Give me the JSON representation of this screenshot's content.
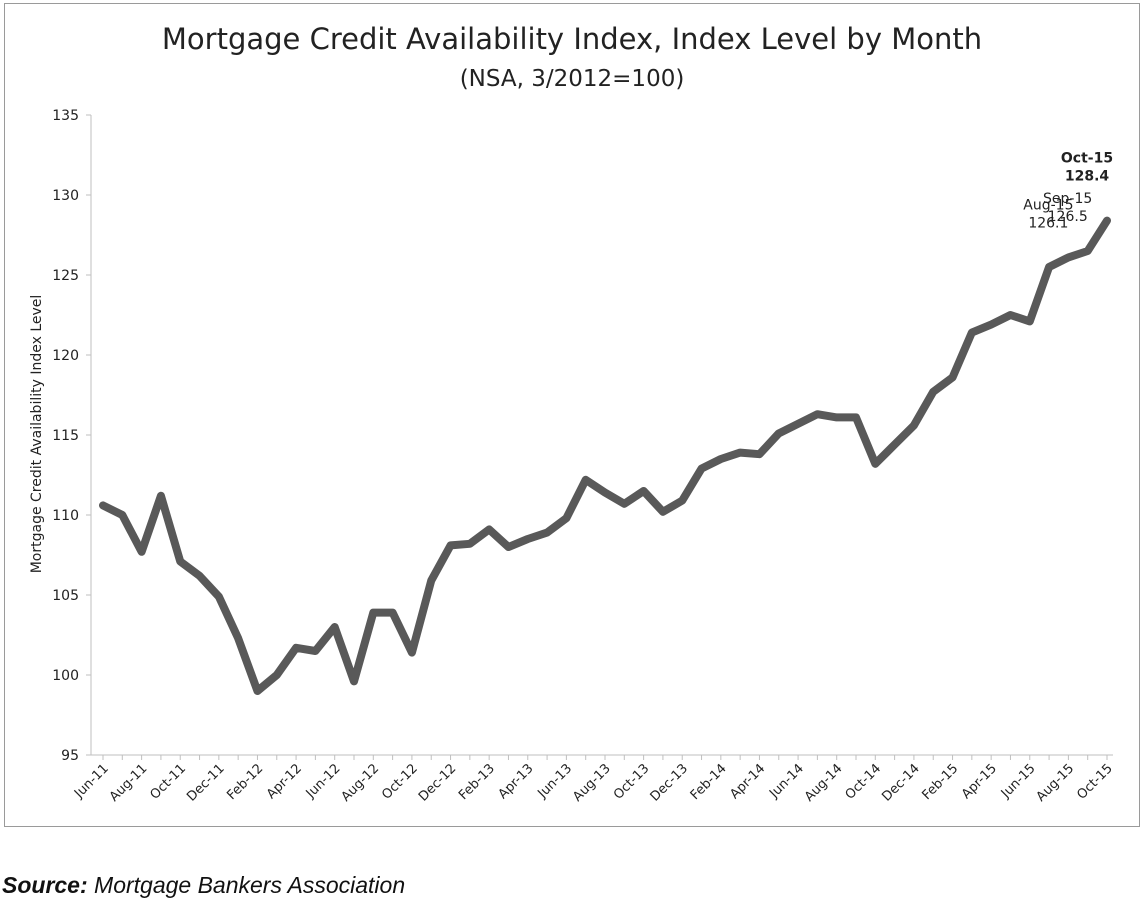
{
  "chart_data": {
    "type": "line",
    "title": "Mortgage Credit Availability Index, Index Level by Month",
    "subtitle": "(NSA, 3/2012=100)",
    "xlabel": "",
    "ylabel": "Mortgage Credit Availability Index Level",
    "ylim": [
      95,
      135
    ],
    "yticks": [
      95,
      100,
      105,
      110,
      115,
      120,
      125,
      130,
      135
    ],
    "grid": false,
    "x_tick_labels": [
      "Jun-11",
      "Aug-11",
      "Oct-11",
      "Dec-11",
      "Feb-12",
      "Apr-12",
      "Jun-12",
      "Aug-12",
      "Oct-12",
      "Dec-12",
      "Feb-13",
      "Apr-13",
      "Jun-13",
      "Aug-13",
      "Oct-13",
      "Dec-13",
      "Feb-14",
      "Apr-14",
      "Jun-14",
      "Aug-14",
      "Oct-14",
      "Dec-14",
      "Feb-15",
      "Apr-15",
      "Jun-15",
      "Aug-15",
      "Oct-15"
    ],
    "x": [
      "Jun-11",
      "Jul-11",
      "Aug-11",
      "Sep-11",
      "Oct-11",
      "Nov-11",
      "Dec-11",
      "Jan-12",
      "Feb-12",
      "Mar-12",
      "Apr-12",
      "May-12",
      "Jun-12",
      "Jul-12",
      "Aug-12",
      "Sep-12",
      "Oct-12",
      "Nov-12",
      "Dec-12",
      "Jan-13",
      "Feb-13",
      "Mar-13",
      "Apr-13",
      "May-13",
      "Jun-13",
      "Jul-13",
      "Aug-13",
      "Sep-13",
      "Oct-13",
      "Nov-13",
      "Dec-13",
      "Jan-14",
      "Feb-14",
      "Mar-14",
      "Apr-14",
      "May-14",
      "Jun-14",
      "Jul-14",
      "Aug-14",
      "Sep-14",
      "Oct-14",
      "Nov-14",
      "Dec-14",
      "Jan-15",
      "Feb-15",
      "Mar-15",
      "Apr-15",
      "May-15",
      "Jun-15",
      "Jul-15",
      "Aug-15",
      "Sep-15",
      "Oct-15"
    ],
    "series": [
      {
        "name": "",
        "color": "#595959",
        "values": [
          110.6,
          110.0,
          107.7,
          111.2,
          107.1,
          106.2,
          104.9,
          102.3,
          99.0,
          100.0,
          101.7,
          101.5,
          103.0,
          99.6,
          103.9,
          103.9,
          101.4,
          105.9,
          108.1,
          108.2,
          109.1,
          108.0,
          108.5,
          108.9,
          109.8,
          112.2,
          111.4,
          110.7,
          111.5,
          110.2,
          110.9,
          112.9,
          113.5,
          113.9,
          113.8,
          115.1,
          115.7,
          116.3,
          116.1,
          116.1,
          113.2,
          114.4,
          115.6,
          117.7,
          118.6,
          121.4,
          121.9,
          122.5,
          122.1,
          125.5,
          126.1,
          126.5,
          128.4
        ]
      }
    ],
    "annotations": [
      {
        "label": "Aug-15",
        "value": "126.1",
        "bold": false
      },
      {
        "label": "Sep-15",
        "value": "126.5",
        "bold": false
      },
      {
        "label": "Oct-15",
        "value": "128.4",
        "bold": true
      }
    ]
  },
  "source": {
    "label": "Source:",
    "text": "Mortgage Bankers Association"
  }
}
